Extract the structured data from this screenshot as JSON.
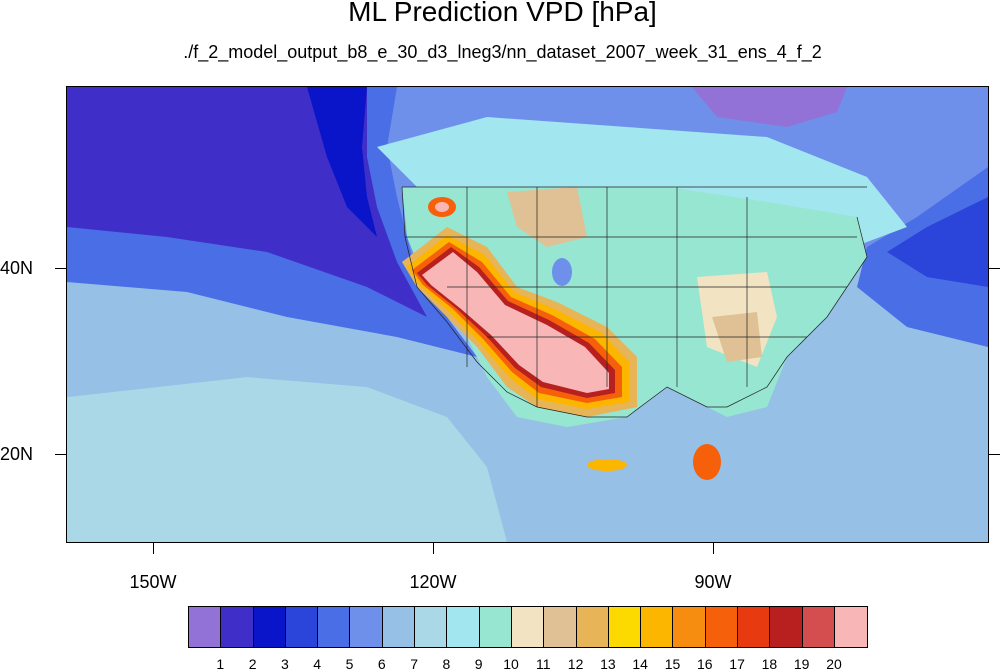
{
  "map": {
    "title": "ML Prediction VPD [hPa]",
    "subtitle": "./f_2_model_output_b8_e_30_d3_lneg3/nn_dataset_2007_week_31_ens_4_f_2",
    "lat_labels": [
      "40N",
      "20N"
    ],
    "lon_labels": [
      "150W",
      "120W",
      "90W"
    ]
  },
  "colorbar": {
    "labels": [
      "1",
      "2",
      "3",
      "4",
      "5",
      "6",
      "7",
      "8",
      "9",
      "10",
      "11",
      "12",
      "13",
      "14",
      "15",
      "16",
      "17",
      "18",
      "19",
      "20"
    ],
    "colors": [
      "#9272d6",
      "#3f2fc8",
      "#0a14c8",
      "#2b45da",
      "#4a6ee6",
      "#6e90ea",
      "#96c0e6",
      "#aad8e6",
      "#a2e6ef",
      "#96e6d2",
      "#f2e4c2",
      "#dfc195",
      "#e8b458",
      "#fcda00",
      "#fcb600",
      "#f78d10",
      "#f7600a",
      "#e83a10",
      "#b82020",
      "#d44e50",
      "#f8b6b6"
    ]
  },
  "colors": {
    "ocean_pacific": "#3f2fc8",
    "ocean_near": "#2b45da",
    "background_mid": "#96c0e6"
  }
}
